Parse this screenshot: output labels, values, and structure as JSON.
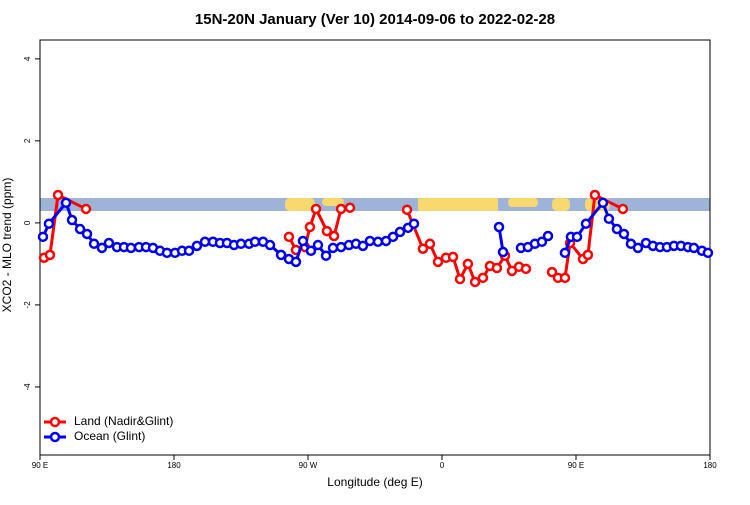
{
  "chart_data": {
    "type": "line",
    "title": "15N-20N January (Ver 10)   2014-09-06 to 2022-02-28",
    "x_label": "Longitude (deg E)",
    "y_label": "XCO2 - MLO trend (ppm)",
    "xlim": [
      90,
      540
    ],
    "xticks": [
      {
        "value": 90,
        "label": "90 E"
      },
      {
        "value": 180,
        "label": "180"
      },
      {
        "value": 270,
        "label": "90 W"
      },
      {
        "value": 360,
        "label": "0"
      },
      {
        "value": 450,
        "label": "90 E"
      },
      {
        "value": 540,
        "label": "180"
      }
    ],
    "ylim": [
      -5.66,
      4.46
    ],
    "yticks": [
      4,
      2,
      0,
      -2,
      -4
    ],
    "legend": "bottom-left",
    "series": [
      {
        "name": "Land (Nadir&Glint)",
        "color": "#ff0000",
        "x": [
          92.7,
          96.7,
          102.1,
          120.9,
          null,
          257.2,
          261.9,
          268.0,
          271.3,
          275.4,
          282.7,
          287.5,
          292.2,
          298.2,
          null,
          336.5,
          347.2,
          351.9,
          357.3,
          362.7,
          367.4,
          372.1,
          377.4,
          382.2,
          387.5,
          392.2,
          396.9,
          402.3,
          407.0,
          411.7,
          416.4,
          null,
          433.9,
          437.9,
          442.6,
          446.0,
          454.7,
          458.0,
          462.7,
          481.5
        ],
        "values": [
          -0.85,
          -0.78,
          0.68,
          0.34,
          null,
          -0.34,
          -0.66,
          -0.59,
          -0.1,
          0.34,
          -0.2,
          -0.32,
          0.34,
          0.37,
          null,
          0.32,
          -0.63,
          -0.51,
          -0.95,
          -0.85,
          -0.83,
          -1.37,
          -1.0,
          -1.44,
          -1.34,
          -1.05,
          -1.1,
          -0.8,
          -1.17,
          -1.07,
          -1.12,
          null,
          -1.2,
          -1.34,
          -1.34,
          -0.49,
          -0.88,
          -0.78,
          0.68,
          0.34
        ]
      },
      {
        "name": "Ocean (Glint)",
        "color": "#0000ee",
        "x": [
          92.0,
          96.0,
          107.5,
          111.5,
          116.9,
          121.6,
          126.3,
          131.6,
          136.3,
          141.7,
          146.4,
          151.1,
          156.5,
          161.2,
          165.9,
          170.6,
          175.3,
          180.7,
          185.4,
          190.1,
          195.4,
          200.8,
          206.2,
          210.9,
          215.6,
          220.3,
          225.0,
          230.4,
          234.4,
          239.8,
          244.5,
          251.9,
          257.2,
          261.9,
          266.6,
          272.0,
          276.7,
          282.1,
          286.8,
          292.2,
          297.5,
          302.2,
          306.9,
          311.6,
          317.0,
          322.4,
          327.1,
          331.8,
          337.2,
          341.2,
          null,
          398.3,
          401.0,
          null,
          413.0,
          417.7,
          422.4,
          427.1,
          431.2,
          null,
          442.6,
          446.6,
          450.7,
          456.7,
          468.1,
          472.1,
          477.5,
          482.2,
          486.9,
          491.6,
          497.0,
          501.7,
          506.4,
          511.1,
          515.8,
          520.5,
          525.2,
          529.2,
          534.6,
          538.6
        ],
        "values": [
          -0.34,
          -0.02,
          0.49,
          0.07,
          -0.15,
          -0.27,
          -0.51,
          -0.61,
          -0.49,
          -0.59,
          -0.59,
          -0.61,
          -0.59,
          -0.59,
          -0.61,
          -0.68,
          -0.73,
          -0.73,
          -0.68,
          -0.68,
          -0.56,
          -0.46,
          -0.46,
          -0.49,
          -0.49,
          -0.54,
          -0.51,
          -0.51,
          -0.46,
          -0.46,
          -0.54,
          -0.78,
          -0.88,
          -0.95,
          -0.44,
          -0.68,
          -0.54,
          -0.8,
          -0.61,
          -0.59,
          -0.54,
          -0.51,
          -0.56,
          -0.44,
          -0.46,
          -0.44,
          -0.34,
          -0.22,
          -0.12,
          -0.02,
          null,
          -0.1,
          -0.71,
          null,
          -0.61,
          -0.59,
          -0.51,
          -0.46,
          -0.32,
          null,
          -0.73,
          -0.34,
          -0.34,
          -0.02,
          0.49,
          0.1,
          -0.15,
          -0.27,
          -0.51,
          -0.61,
          -0.49,
          -0.56,
          -0.59,
          -0.59,
          -0.56,
          -0.56,
          -0.59,
          -0.61,
          -0.68,
          -0.73
        ]
      }
    ]
  }
}
